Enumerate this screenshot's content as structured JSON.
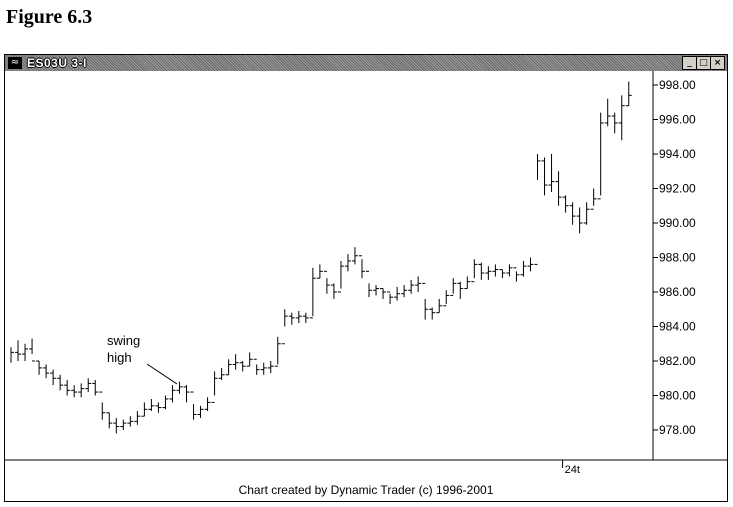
{
  "figure_title": "Figure 6.3",
  "window": {
    "title": "ES03U 3-I",
    "icon": "chart-app-icon",
    "buttons": {
      "minimize": "_",
      "maximize": "□",
      "close": "×"
    }
  },
  "footer_text": "Chart created by Dynamic Trader (c) 1996-2001",
  "annotation": {
    "text_line1": "swing",
    "text_line2": "high"
  },
  "chart_data": {
    "type": "bar",
    "subtype": "ohlc",
    "title": "ES03U 3-I",
    "xlabel": "",
    "ylabel": "",
    "ylim": [
      976.0,
      998.8
    ],
    "y_ticks": [
      "998.00",
      "996.00",
      "994.00",
      "992.00",
      "990.00",
      "988.00",
      "986.00",
      "984.00",
      "982.00",
      "980.00",
      "978.00"
    ],
    "x_tick_labels": [
      {
        "label": "24t",
        "index": 79
      }
    ],
    "grid": false,
    "bars": [
      [
        982.8,
        981.9,
        982.5
      ],
      [
        983.2,
        982.0,
        982.4
      ],
      [
        983.0,
        982.0,
        982.7
      ],
      [
        983.3,
        982.4,
        982.0
      ],
      [
        982.0,
        981.2,
        981.6
      ],
      [
        981.8,
        981.0,
        981.3
      ],
      [
        981.5,
        980.6,
        981.0
      ],
      [
        981.2,
        980.3,
        980.6
      ],
      [
        980.9,
        980.0,
        980.3
      ],
      [
        980.6,
        979.9,
        980.2
      ],
      [
        980.7,
        979.9,
        980.4
      ],
      [
        981.0,
        980.2,
        980.7
      ],
      [
        980.9,
        980.0,
        980.2
      ],
      [
        979.6,
        978.6,
        979.0
      ],
      [
        979.0,
        978.1,
        978.4
      ],
      [
        978.7,
        977.8,
        978.2
      ],
      [
        978.6,
        978.0,
        978.4
      ],
      [
        978.8,
        978.2,
        978.5
      ],
      [
        979.1,
        978.3,
        978.8
      ],
      [
        979.6,
        978.8,
        979.2
      ],
      [
        979.8,
        979.1,
        979.4
      ],
      [
        979.6,
        979.0,
        979.3
      ],
      [
        980.0,
        979.2,
        979.8
      ],
      [
        980.6,
        979.6,
        980.3
      ],
      [
        980.8,
        980.1,
        980.5
      ],
      [
        980.6,
        979.6,
        980.2
      ],
      [
        979.5,
        978.6,
        978.9
      ],
      [
        979.4,
        978.7,
        979.2
      ],
      [
        979.9,
        979.1,
        979.6
      ],
      [
        981.4,
        980.0,
        981.0
      ],
      [
        981.6,
        980.9,
        981.2
      ],
      [
        982.1,
        981.2,
        981.8
      ],
      [
        982.4,
        981.5,
        981.9
      ],
      [
        982.0,
        981.4,
        981.7
      ],
      [
        982.5,
        981.7,
        982.1
      ],
      [
        981.8,
        981.2,
        981.5
      ],
      [
        981.9,
        981.2,
        981.6
      ],
      [
        982.0,
        981.3,
        981.7
      ],
      [
        983.4,
        981.8,
        983.0
      ],
      [
        985.0,
        984.0,
        984.6
      ],
      [
        984.8,
        984.1,
        984.5
      ],
      [
        984.9,
        984.2,
        984.6
      ],
      [
        984.8,
        984.2,
        984.5
      ],
      [
        987.4,
        984.6,
        986.8
      ],
      [
        987.6,
        986.8,
        987.2
      ],
      [
        986.8,
        985.9,
        986.4
      ],
      [
        986.5,
        985.6,
        986.0
      ],
      [
        987.8,
        986.2,
        987.5
      ],
      [
        988.2,
        987.2,
        987.8
      ],
      [
        988.6,
        987.6,
        988.1
      ],
      [
        987.9,
        986.8,
        987.2
      ],
      [
        986.5,
        985.7,
        986.1
      ],
      [
        986.4,
        985.8,
        986.2
      ],
      [
        986.2,
        985.6,
        986.0
      ],
      [
        985.9,
        985.3,
        985.7
      ],
      [
        986.3,
        985.5,
        985.9
      ],
      [
        986.4,
        985.7,
        986.1
      ],
      [
        986.7,
        985.9,
        986.4
      ],
      [
        986.9,
        986.0,
        986.5
      ],
      [
        985.6,
        984.4,
        985.0
      ],
      [
        985.1,
        984.4,
        984.8
      ],
      [
        985.6,
        984.8,
        985.2
      ],
      [
        986.1,
        985.3,
        985.8
      ],
      [
        986.8,
        985.9,
        986.5
      ],
      [
        986.6,
        985.6,
        986.2
      ],
      [
        986.9,
        986.2,
        986.6
      ],
      [
        987.9,
        986.8,
        987.6
      ],
      [
        987.7,
        986.7,
        987.1
      ],
      [
        987.5,
        986.7,
        987.2
      ],
      [
        987.6,
        986.9,
        987.3
      ],
      [
        987.3,
        986.8,
        987.1
      ],
      [
        987.6,
        986.9,
        987.4
      ],
      [
        987.2,
        986.6,
        987.0
      ],
      [
        987.8,
        986.9,
        987.5
      ],
      [
        988.0,
        987.2,
        987.6
      ],
      [
        994.0,
        992.5,
        993.6
      ],
      [
        993.8,
        991.6,
        992.2
      ],
      [
        994.0,
        991.8,
        992.4
      ],
      [
        993.0,
        991.0,
        991.5
      ],
      [
        991.6,
        990.6,
        991.0
      ],
      [
        991.2,
        989.9,
        990.4
      ],
      [
        990.9,
        989.4,
        990.0
      ],
      [
        991.2,
        989.9,
        990.8
      ],
      [
        992.0,
        991.0,
        991.4
      ],
      [
        996.4,
        991.6,
        995.8
      ],
      [
        997.2,
        995.6,
        996.2
      ],
      [
        996.4,
        995.2,
        995.8
      ],
      [
        997.4,
        994.8,
        996.8
      ],
      [
        998.2,
        996.8,
        997.4
      ]
    ]
  }
}
